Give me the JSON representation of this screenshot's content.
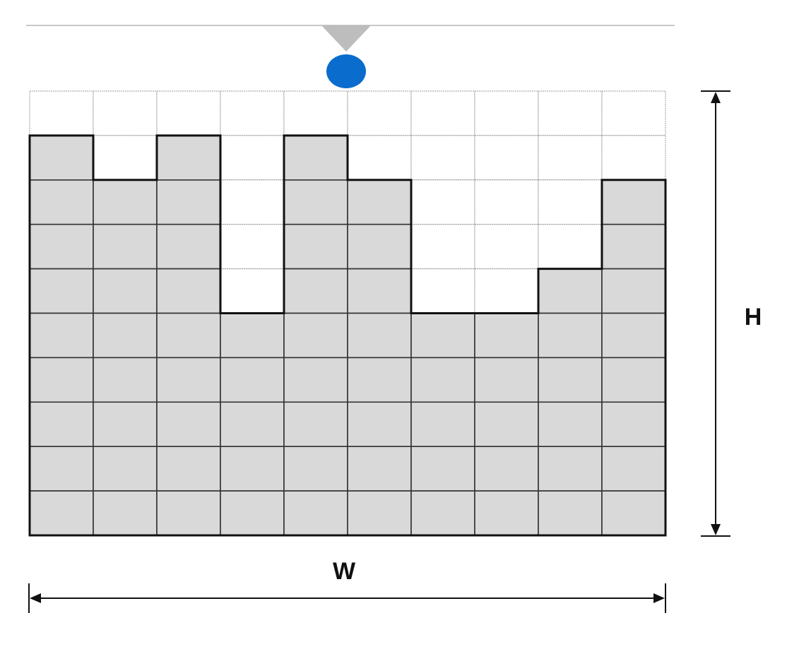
{
  "grid": {
    "columns": 10,
    "rows": 10,
    "column_heights": [
      9,
      8,
      9,
      5,
      9,
      8,
      5,
      5,
      6,
      8
    ]
  },
  "labels": {
    "width": "W",
    "height": "H"
  },
  "colors": {
    "background": "#ffffff",
    "filled_cell": "#d9d9d9",
    "empty_cell": "#ffffff",
    "grid_line": "#9a9a9a",
    "filled_grid_line": "#333333",
    "outline": "#111111",
    "drop": "#0a6ccc",
    "nozzle": "#bdbdbd",
    "rail": "#c8c8c8",
    "arrow": "#111111"
  }
}
